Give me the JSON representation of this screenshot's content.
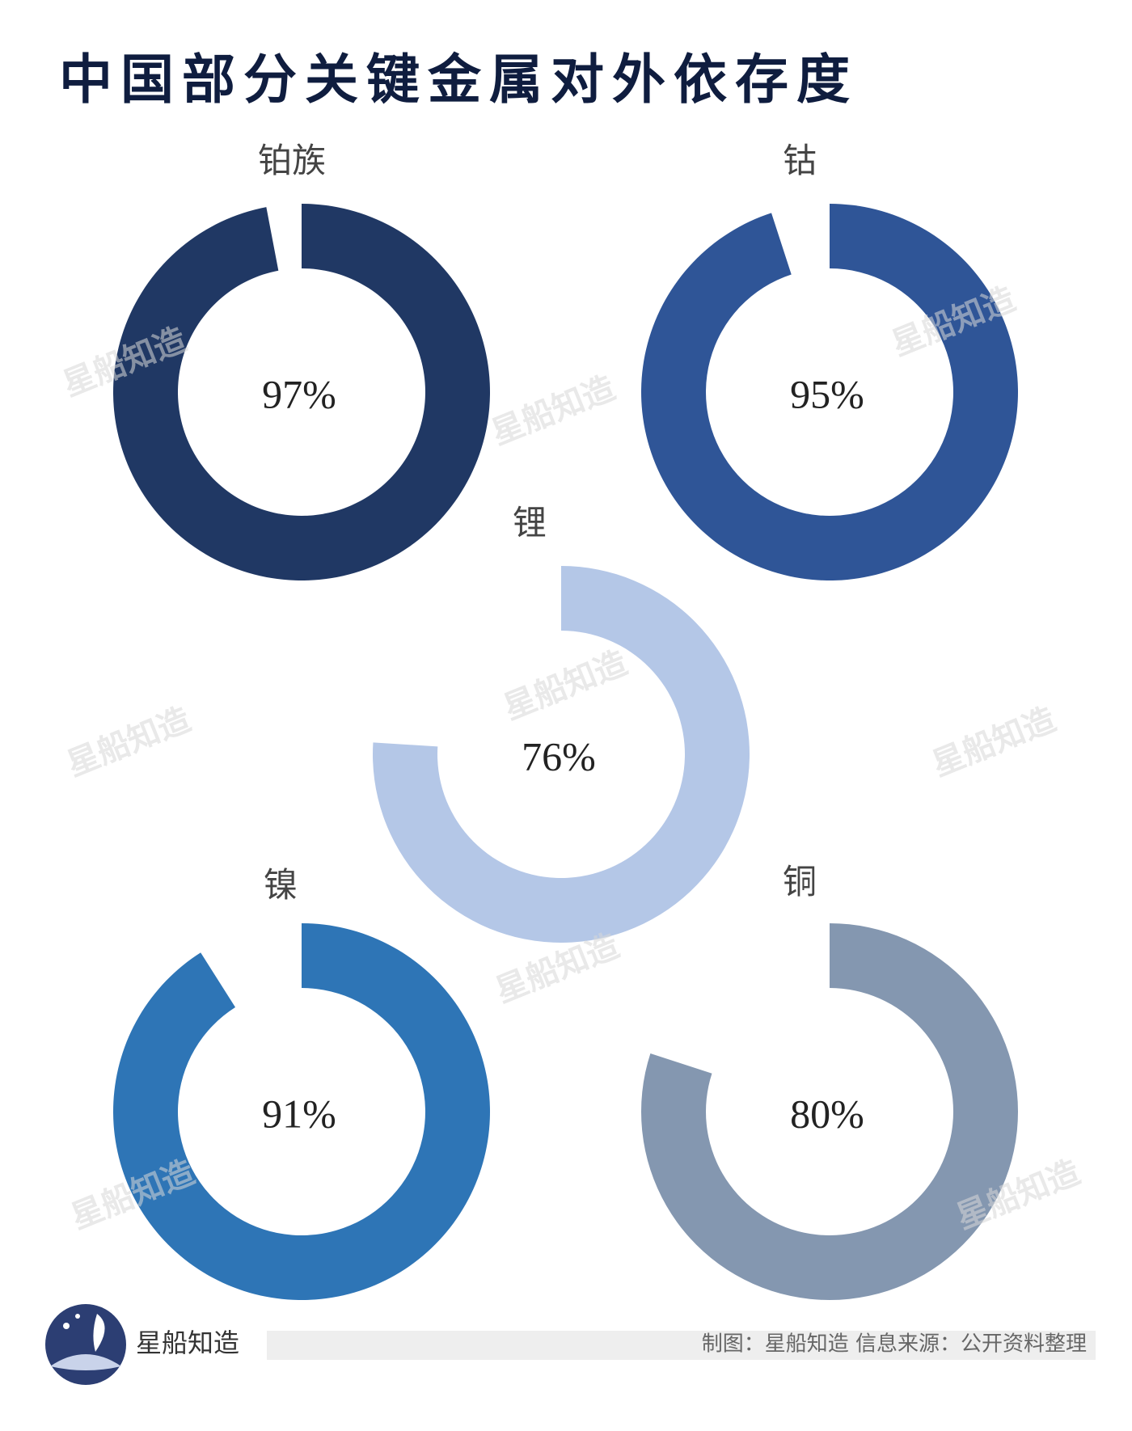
{
  "title": "中国部分关键金属对外依存度",
  "watermark": "星船知造",
  "chart_data": [
    {
      "type": "donut",
      "title": "铂族",
      "values": [
        97
      ],
      "value_labels": [
        "97%"
      ],
      "color": "#203864"
    },
    {
      "type": "donut",
      "title": "钴",
      "values": [
        95
      ],
      "value_labels": [
        "95%"
      ],
      "color": "#2f5597"
    },
    {
      "type": "donut",
      "title": "锂",
      "values": [
        76
      ],
      "value_labels": [
        "76%"
      ],
      "color": "#b4c7e7"
    },
    {
      "type": "donut",
      "title": "镍",
      "values": [
        91
      ],
      "value_labels": [
        "91%"
      ],
      "color": "#2e75b6"
    },
    {
      "type": "donut",
      "title": "铜",
      "values": [
        80
      ],
      "value_labels": [
        "80%"
      ],
      "color": "#8497b0"
    }
  ],
  "footer": {
    "brand": "星船知造",
    "credit": "制图：星船知造    信息来源：公开资料整理"
  }
}
